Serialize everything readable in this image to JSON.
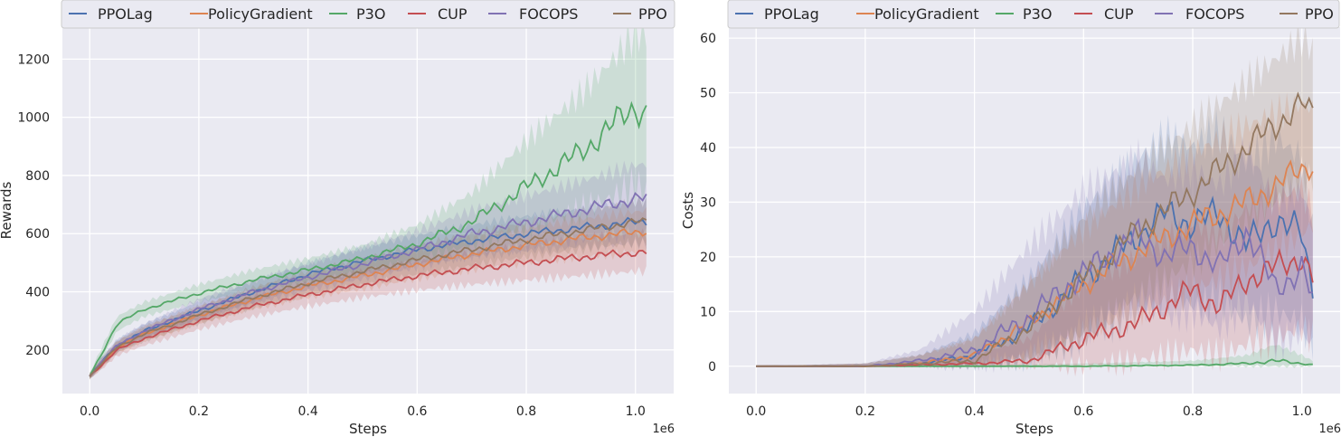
{
  "chart_data": [
    {
      "type": "line",
      "title": "",
      "xlabel": "Steps",
      "ylabel": "Rewards",
      "x_scale_note": "1e6",
      "xlim": [
        -0.05,
        1.07
      ],
      "ylim": [
        50,
        1310
      ],
      "xticks": [
        0.0,
        0.2,
        0.4,
        0.6,
        0.8,
        1.0
      ],
      "xtick_labels": [
        "0.0",
        "0.2",
        "0.4",
        "0.6",
        "0.8",
        "1.0"
      ],
      "yticks": [
        200,
        400,
        600,
        800,
        1000,
        1200
      ],
      "ytick_labels": [
        "200",
        "400",
        "600",
        "800",
        "1000",
        "1200"
      ],
      "grid": true,
      "legend_position": "top",
      "series": [
        {
          "name": "PPOLag",
          "color": "#4c72b0",
          "x": [
            0.0,
            0.02,
            0.05,
            0.1,
            0.2,
            0.3,
            0.4,
            0.5,
            0.6,
            0.7,
            0.8,
            0.9,
            1.0,
            1.02
          ],
          "y": [
            110,
            155,
            215,
            265,
            335,
            400,
            460,
            505,
            545,
            575,
            600,
            620,
            640,
            640
          ],
          "lower": [
            100,
            140,
            195,
            240,
            305,
            365,
            420,
            460,
            495,
            520,
            540,
            555,
            565,
            565
          ],
          "upper": [
            120,
            170,
            235,
            290,
            365,
            435,
            500,
            550,
            595,
            630,
            660,
            685,
            710,
            710
          ]
        },
        {
          "name": "PolicyGradient",
          "color": "#dd8452",
          "x": [
            0.0,
            0.02,
            0.05,
            0.1,
            0.2,
            0.3,
            0.4,
            0.5,
            0.6,
            0.7,
            0.8,
            0.9,
            1.0,
            1.02
          ],
          "y": [
            110,
            150,
            210,
            255,
            320,
            375,
            420,
            455,
            495,
            530,
            560,
            585,
            605,
            610
          ],
          "lower": [
            100,
            135,
            190,
            230,
            290,
            340,
            380,
            410,
            445,
            475,
            500,
            520,
            535,
            540
          ],
          "upper": [
            120,
            165,
            230,
            280,
            350,
            410,
            460,
            500,
            545,
            585,
            620,
            650,
            675,
            680
          ]
        },
        {
          "name": "P3O",
          "color": "#55a868",
          "x": [
            0.0,
            0.02,
            0.05,
            0.1,
            0.2,
            0.3,
            0.4,
            0.5,
            0.6,
            0.7,
            0.8,
            0.9,
            0.95,
            1.0,
            1.02
          ],
          "y": [
            110,
            180,
            290,
            340,
            395,
            440,
            475,
            515,
            565,
            640,
            760,
            880,
            960,
            1040,
            1010
          ],
          "lower": [
            100,
            160,
            265,
            315,
            365,
            405,
            435,
            470,
            510,
            560,
            620,
            680,
            720,
            760,
            740
          ],
          "upper": [
            120,
            200,
            315,
            365,
            425,
            475,
            515,
            560,
            630,
            740,
            920,
            1080,
            1180,
            1290,
            1280
          ]
        },
        {
          "name": "CUP",
          "color": "#c44e52",
          "x": [
            0.0,
            0.02,
            0.05,
            0.1,
            0.2,
            0.3,
            0.4,
            0.5,
            0.6,
            0.7,
            0.8,
            0.9,
            1.0,
            1.02
          ],
          "y": [
            110,
            145,
            200,
            240,
            300,
            350,
            390,
            425,
            455,
            480,
            500,
            520,
            535,
            535
          ],
          "lower": [
            100,
            130,
            180,
            215,
            270,
            315,
            350,
            380,
            405,
            425,
            440,
            455,
            470,
            470
          ],
          "upper": [
            120,
            160,
            220,
            265,
            330,
            385,
            430,
            470,
            505,
            535,
            560,
            585,
            600,
            600
          ]
        },
        {
          "name": "FOCOPS",
          "color": "#8172b3",
          "x": [
            0.0,
            0.02,
            0.05,
            0.1,
            0.2,
            0.3,
            0.4,
            0.5,
            0.6,
            0.7,
            0.8,
            0.9,
            1.0,
            1.02
          ],
          "y": [
            110,
            155,
            215,
            265,
            340,
            400,
            450,
            495,
            545,
            600,
            640,
            680,
            720,
            720
          ],
          "lower": [
            100,
            140,
            195,
            240,
            305,
            360,
            405,
            445,
            485,
            525,
            555,
            580,
            605,
            605
          ],
          "upper": [
            120,
            170,
            235,
            290,
            375,
            440,
            495,
            550,
            610,
            680,
            730,
            780,
            835,
            840
          ]
        },
        {
          "name": "PPO",
          "color": "#937860",
          "x": [
            0.0,
            0.02,
            0.05,
            0.1,
            0.2,
            0.3,
            0.4,
            0.5,
            0.6,
            0.7,
            0.8,
            0.9,
            1.0,
            1.02
          ],
          "y": [
            110,
            150,
            210,
            255,
            320,
            380,
            430,
            470,
            510,
            545,
            580,
            610,
            640,
            640
          ],
          "lower": [
            100,
            135,
            190,
            230,
            290,
            345,
            390,
            425,
            460,
            490,
            520,
            545,
            570,
            570
          ],
          "upper": [
            120,
            165,
            230,
            280,
            350,
            415,
            470,
            515,
            560,
            600,
            640,
            675,
            710,
            710
          ]
        }
      ]
    },
    {
      "type": "line",
      "title": "",
      "xlabel": "Steps",
      "ylabel": "Costs",
      "x_scale_note": "1e6",
      "xlim": [
        -0.05,
        1.07
      ],
      "ylim": [
        -5,
        62
      ],
      "xticks": [
        0.0,
        0.2,
        0.4,
        0.6,
        0.8,
        1.0
      ],
      "xtick_labels": [
        "0.0",
        "0.2",
        "0.4",
        "0.6",
        "0.8",
        "1.0"
      ],
      "yticks": [
        0,
        10,
        20,
        30,
        40,
        50,
        60
      ],
      "ytick_labels": [
        "0",
        "10",
        "20",
        "30",
        "40",
        "50",
        "60"
      ],
      "grid": true,
      "legend_position": "top",
      "series": [
        {
          "name": "PPOLag",
          "color": "#4c72b0",
          "x": [
            0.0,
            0.2,
            0.3,
            0.4,
            0.5,
            0.6,
            0.7,
            0.75,
            0.8,
            0.85,
            0.9,
            0.95,
            1.0,
            1.02
          ],
          "y": [
            0,
            0,
            0.5,
            2,
            7,
            16,
            24,
            28,
            26,
            28,
            22,
            27,
            24,
            14
          ],
          "lower": [
            0,
            0,
            0,
            0,
            1,
            5,
            10,
            13,
            11,
            12,
            8,
            10,
            8,
            4
          ],
          "upper": [
            0,
            0.5,
            2,
            6,
            16,
            29,
            38,
            42,
            40,
            43,
            37,
            42,
            38,
            25
          ]
        },
        {
          "name": "PolicyGradient",
          "color": "#dd8452",
          "x": [
            0.0,
            0.2,
            0.3,
            0.4,
            0.5,
            0.6,
            0.7,
            0.8,
            0.9,
            1.0,
            1.02
          ],
          "y": [
            0,
            0,
            0.5,
            2,
            8,
            15,
            21,
            26,
            30,
            36,
            37
          ],
          "lower": [
            0,
            0,
            0,
            0,
            2,
            6,
            10,
            14,
            18,
            24,
            26
          ],
          "upper": [
            0,
            0.5,
            2,
            5,
            15,
            25,
            33,
            39,
            44,
            48,
            47
          ]
        },
        {
          "name": "P3O",
          "color": "#55a868",
          "x": [
            0.0,
            0.2,
            0.4,
            0.6,
            0.8,
            0.9,
            0.95,
            1.0,
            1.02
          ],
          "y": [
            0,
            0,
            0,
            0,
            0.2,
            0.5,
            1,
            0.5,
            0.3
          ],
          "lower": [
            0,
            0,
            0,
            0,
            0,
            0,
            0,
            0,
            0
          ],
          "upper": [
            0,
            0,
            0.2,
            0.5,
            1,
            2,
            4,
            2,
            1
          ]
        },
        {
          "name": "CUP",
          "color": "#c44e52",
          "x": [
            0.0,
            0.2,
            0.4,
            0.5,
            0.55,
            0.6,
            0.7,
            0.8,
            0.85,
            0.9,
            0.95,
            1.0,
            1.02
          ],
          "y": [
            0,
            0,
            0.5,
            1,
            3,
            5,
            8,
            14,
            11,
            16,
            18,
            20,
            16
          ],
          "lower": [
            0,
            0,
            0,
            0,
            0,
            0,
            1,
            3,
            2,
            4,
            5,
            7,
            5
          ],
          "upper": [
            0,
            0,
            2,
            5,
            10,
            15,
            20,
            26,
            24,
            29,
            31,
            32,
            28
          ]
        },
        {
          "name": "FOCOPS",
          "color": "#8172b3",
          "x": [
            0.0,
            0.2,
            0.3,
            0.4,
            0.5,
            0.6,
            0.7,
            0.75,
            0.8,
            0.85,
            0.9,
            0.95,
            1.0,
            1.02
          ],
          "y": [
            0,
            0,
            1,
            3,
            9,
            17,
            24,
            20,
            22,
            18,
            25,
            14,
            18,
            12
          ],
          "lower": [
            0,
            0,
            0,
            0,
            2,
            7,
            12,
            9,
            10,
            7,
            12,
            4,
            6,
            4
          ],
          "upper": [
            0,
            0.5,
            3,
            10,
            22,
            32,
            38,
            34,
            36,
            33,
            40,
            30,
            32,
            26
          ]
        },
        {
          "name": "PPO",
          "color": "#937860",
          "x": [
            0.0,
            0.2,
            0.3,
            0.4,
            0.5,
            0.6,
            0.7,
            0.8,
            0.9,
            0.95,
            1.0,
            1.02
          ],
          "y": [
            0,
            0,
            0.5,
            1,
            7,
            16,
            25,
            32,
            40,
            44,
            48,
            46
          ],
          "lower": [
            0,
            0,
            0,
            0,
            1,
            6,
            13,
            19,
            26,
            30,
            35,
            34
          ],
          "upper": [
            0,
            0.5,
            2,
            5,
            15,
            27,
            36,
            44,
            52,
            56,
            60,
            58
          ]
        }
      ]
    }
  ]
}
